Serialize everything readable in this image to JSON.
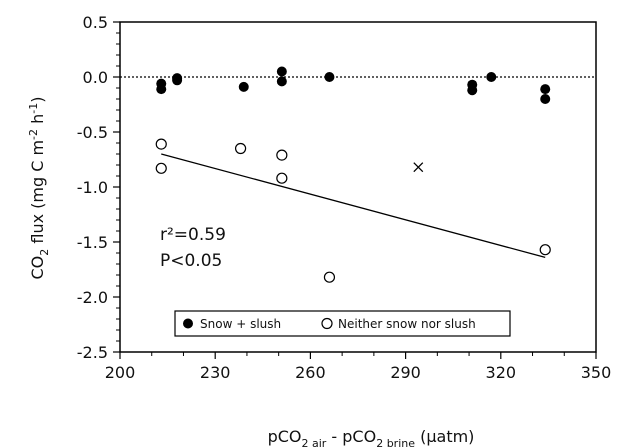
{
  "chart_data": {
    "type": "scatter",
    "xlim": [
      200,
      350
    ],
    "ylim": [
      -2.5,
      0.5
    ],
    "xticks": [
      200,
      230,
      260,
      290,
      320,
      350
    ],
    "yticks": [
      0.5,
      0.0,
      -0.5,
      -1.0,
      -1.5,
      -2.0,
      -2.5
    ],
    "x_tick_labels": [
      "200",
      "230",
      "260",
      "290",
      "320",
      "350"
    ],
    "y_tick_labels": [
      "0.5",
      "0.0",
      "-0.5",
      "-1.0",
      "-1.5",
      "-2.0",
      "-2.5"
    ],
    "xlabel_parts": [
      "pCO",
      "2 air",
      " - pCO",
      "2 brine",
      " (µatm)"
    ],
    "ylabel_parts": [
      "CO",
      "2",
      " flux (mg C m",
      "-2",
      " h",
      "-1",
      ")"
    ],
    "zero_line": true,
    "legend_position": "bottom",
    "series": [
      {
        "name": "Snow + slush",
        "marker": "filled-circle",
        "color": "#000000",
        "points": [
          [
            213,
            -0.06
          ],
          [
            213,
            -0.11
          ],
          [
            218,
            -0.01
          ],
          [
            218,
            -0.03
          ],
          [
            239,
            -0.09
          ],
          [
            251,
            0.05
          ],
          [
            251,
            -0.04
          ],
          [
            266,
            0.0
          ],
          [
            311,
            -0.07
          ],
          [
            311,
            -0.12
          ],
          [
            317,
            0.0
          ],
          [
            334,
            -0.11
          ],
          [
            334,
            -0.2
          ]
        ]
      },
      {
        "name": "Neither snow nor slush",
        "marker": "open-circle",
        "color": "#000000",
        "points": [
          [
            213,
            -0.61
          ],
          [
            213,
            -0.83
          ],
          [
            238,
            -0.65
          ],
          [
            251,
            -0.71
          ],
          [
            251,
            -0.92
          ],
          [
            266,
            -1.82
          ],
          [
            334,
            -1.57
          ]
        ]
      },
      {
        "marker": "cross",
        "color": "#000000",
        "points": [
          [
            294,
            -0.82
          ]
        ]
      }
    ],
    "regression_line": {
      "x": [
        213,
        334
      ],
      "y": [
        -0.7,
        -1.64
      ]
    },
    "annotation_lines": [
      "r²=0.59",
      "P<0.05"
    ]
  }
}
